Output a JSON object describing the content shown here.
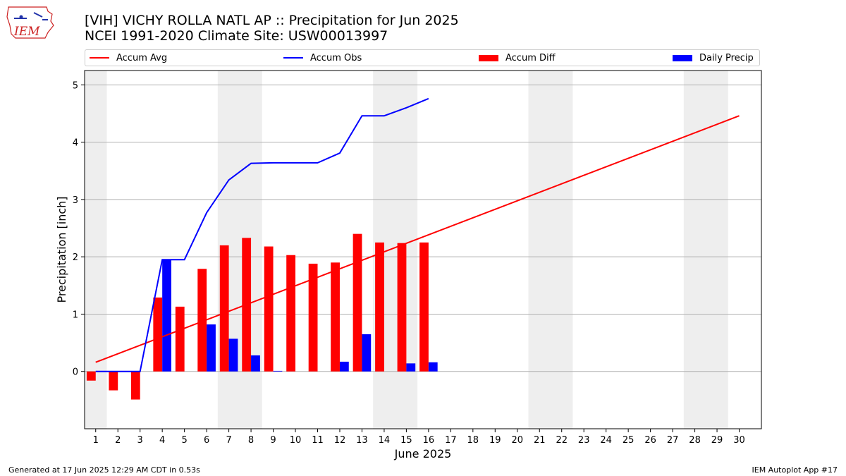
{
  "header": {
    "title_line1": "[VIH] VICHY ROLLA NATL AP :: Precipitation for Jun 2025",
    "title_line2": "NCEI 1991-2020 Climate Site: USW00013997",
    "logo_text": "IEM"
  },
  "footer": {
    "left": "Generated at 17 Jun 2025 12:29 AM CDT in 0.53s",
    "right": "IEM Autoplot App #17"
  },
  "chart_data": {
    "type": "bar",
    "xlabel": "June 2025",
    "ylabel": "Precipitation [inch]",
    "xlim": [
      0.5,
      31
    ],
    "ylim": [
      -1.0,
      5.25
    ],
    "yticks": [
      0,
      1,
      2,
      3,
      4,
      5
    ],
    "categories": [
      "1",
      "2",
      "3",
      "4",
      "5",
      "6",
      "7",
      "8",
      "9",
      "10",
      "11",
      "12",
      "13",
      "14",
      "15",
      "16",
      "17",
      "18",
      "19",
      "20",
      "21",
      "22",
      "23",
      "24",
      "25",
      "26",
      "27",
      "28",
      "29",
      "30"
    ],
    "grid": "horizontal",
    "weekend_shading": [
      [
        0.5,
        1.5
      ],
      [
        6.5,
        8.5
      ],
      [
        13.5,
        15.5
      ],
      [
        20.5,
        22.5
      ],
      [
        27.5,
        29.5
      ]
    ],
    "legend_position": "top, above plot",
    "series": [
      {
        "name": "Accum Avg",
        "kind": "line",
        "color": "#ff0000",
        "x": [
          1,
          30
        ],
        "values": [
          0.16,
          4.46
        ]
      },
      {
        "name": "Accum Obs",
        "kind": "line",
        "color": "#0000ff",
        "x": [
          1,
          2,
          3,
          4,
          5,
          6,
          7,
          8,
          9,
          10,
          11,
          12,
          13,
          14,
          15,
          16
        ],
        "values": [
          0.0,
          0.0,
          0.0,
          1.95,
          1.95,
          2.77,
          3.34,
          3.63,
          3.64,
          3.64,
          3.64,
          3.81,
          4.46,
          4.46,
          4.6,
          4.76
        ]
      },
      {
        "name": "Accum Diff",
        "kind": "bar",
        "color": "#ff0000",
        "x": [
          1,
          2,
          3,
          4,
          5,
          6,
          7,
          8,
          9,
          10,
          11,
          12,
          13,
          14,
          15,
          16
        ],
        "values": [
          -0.16,
          -0.33,
          -0.49,
          1.29,
          1.13,
          1.79,
          2.2,
          2.33,
          2.18,
          2.03,
          1.88,
          1.9,
          2.4,
          2.25,
          2.24,
          2.25
        ]
      },
      {
        "name": "Daily Precip",
        "kind": "bar",
        "color": "#0000ff",
        "x": [
          1,
          2,
          3,
          4,
          5,
          6,
          7,
          8,
          9,
          10,
          11,
          12,
          13,
          14,
          15,
          16
        ],
        "values": [
          0.0,
          0.0,
          0.0,
          1.95,
          0.0,
          0.82,
          0.57,
          0.28,
          0.01,
          0.0,
          0.0,
          0.17,
          0.65,
          0.0,
          0.14,
          0.16
        ]
      }
    ]
  }
}
